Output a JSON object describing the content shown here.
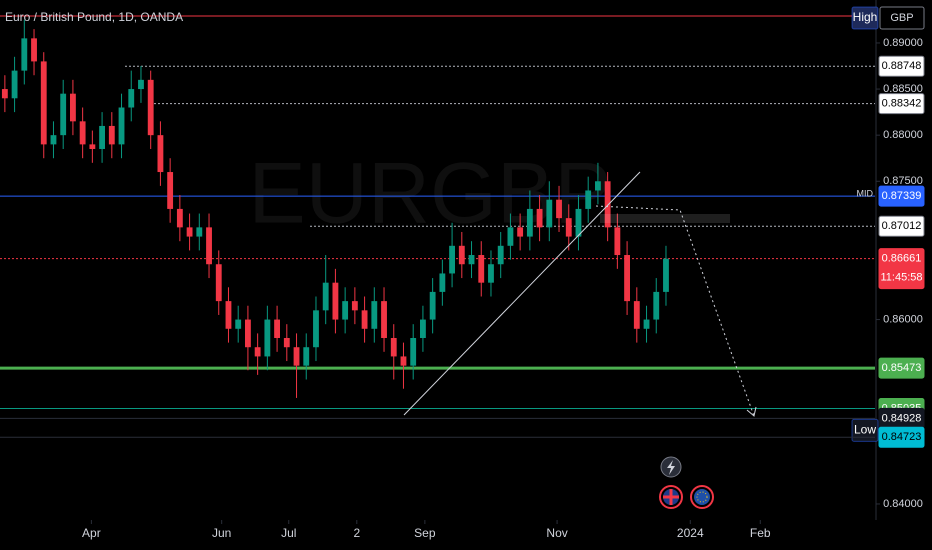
{
  "chart_data": {
    "type": "candlestick",
    "title": "Euro / British Pound, 1D, OANDA",
    "watermark": "EURGBP",
    "currency": "GBP",
    "up_color": "#089981",
    "down_color": "#f23645",
    "ylim": [
      0.83826,
      0.89466
    ],
    "yticks": [
      {
        "value": 0.89,
        "label": "0.89000"
      },
      {
        "value": 0.885,
        "label": "0.88500"
      },
      {
        "value": 0.88,
        "label": "0.88000"
      },
      {
        "value": 0.875,
        "label": "0.87500"
      },
      {
        "value": 0.86,
        "label": "0.86000"
      },
      {
        "value": 0.84,
        "label": "0.84000"
      }
    ],
    "xlim": [
      -0.5,
      89.5
    ],
    "xticks": [
      {
        "value": 8.9,
        "label": "Apr"
      },
      {
        "value": 22.3,
        "label": "Jun"
      },
      {
        "value": 29.2,
        "label": "Jul"
      },
      {
        "value": 36.2,
        "label": "2"
      },
      {
        "value": 43.2,
        "label": "Sep"
      },
      {
        "value": 56.8,
        "label": "Nov"
      },
      {
        "value": 70.5,
        "label": "2024"
      },
      {
        "value": 77.7,
        "label": "Feb"
      }
    ],
    "open": [
      0.885,
      0.884,
      0.887,
      0.8905,
      0.888,
      0.879,
      0.88,
      0.8845,
      0.8815,
      0.879,
      0.8785,
      0.881,
      0.879,
      0.883,
      0.885,
      0.886,
      0.88,
      0.876,
      0.872,
      0.87,
      0.869,
      0.87,
      0.866,
      0.862,
      0.859,
      0.86,
      0.857,
      0.856,
      0.86,
      0.858,
      0.857,
      0.855,
      0.857,
      0.861,
      0.864,
      0.86,
      0.862,
      0.861,
      0.859,
      0.862,
      0.858,
      0.856,
      0.855,
      0.858,
      0.86,
      0.863,
      0.865,
      0.868,
      0.866,
      0.867,
      0.864,
      0.866,
      0.868,
      0.87,
      0.869,
      0.872,
      0.87,
      0.873,
      0.871,
      0.869,
      0.872,
      0.874,
      0.875,
      0.87,
      0.867,
      0.862,
      0.859,
      0.86,
      0.863
    ],
    "high": [
      0.8865,
      0.8885,
      0.8925,
      0.8915,
      0.889,
      0.8815,
      0.886,
      0.886,
      0.883,
      0.8805,
      0.8825,
      0.8825,
      0.8845,
      0.887,
      0.8875,
      0.887,
      0.8815,
      0.8775,
      0.8735,
      0.8715,
      0.8715,
      0.8715,
      0.8675,
      0.8635,
      0.8615,
      0.8615,
      0.8585,
      0.8615,
      0.8615,
      0.8595,
      0.8585,
      0.8585,
      0.8625,
      0.867,
      0.8655,
      0.8635,
      0.8635,
      0.8625,
      0.8635,
      0.8635,
      0.8595,
      0.8575,
      0.8595,
      0.8615,
      0.8645,
      0.8665,
      0.8705,
      0.8695,
      0.8685,
      0.8685,
      0.8675,
      0.8695,
      0.8715,
      0.8715,
      0.874,
      0.8735,
      0.875,
      0.8745,
      0.8725,
      0.8735,
      0.8755,
      0.877,
      0.876,
      0.8715,
      0.8685,
      0.8635,
      0.8615,
      0.8645,
      0.868
    ],
    "low": [
      0.8825,
      0.8825,
      0.8855,
      0.8865,
      0.8775,
      0.8775,
      0.8785,
      0.88,
      0.8775,
      0.877,
      0.877,
      0.8775,
      0.8775,
      0.8815,
      0.8835,
      0.8785,
      0.8745,
      0.8705,
      0.8685,
      0.8675,
      0.8675,
      0.8645,
      0.8605,
      0.8575,
      0.8575,
      0.8545,
      0.854,
      0.8545,
      0.8565,
      0.8555,
      0.8515,
      0.8535,
      0.8555,
      0.8595,
      0.8585,
      0.8585,
      0.8595,
      0.8575,
      0.8575,
      0.8565,
      0.8535,
      0.8525,
      0.8535,
      0.8565,
      0.8585,
      0.8615,
      0.8635,
      0.8645,
      0.8645,
      0.8625,
      0.8625,
      0.8645,
      0.8665,
      0.8675,
      0.8675,
      0.8685,
      0.8685,
      0.8695,
      0.8675,
      0.8675,
      0.8705,
      0.8725,
      0.8685,
      0.8655,
      0.8605,
      0.8575,
      0.8575,
      0.8585,
      0.8615
    ],
    "close": [
      0.884,
      0.887,
      0.8905,
      0.888,
      0.879,
      0.88,
      0.8845,
      0.8815,
      0.879,
      0.8785,
      0.881,
      0.879,
      0.883,
      0.885,
      0.886,
      0.88,
      0.876,
      0.872,
      0.87,
      0.869,
      0.87,
      0.866,
      0.862,
      0.859,
      0.86,
      0.857,
      0.856,
      0.86,
      0.858,
      0.857,
      0.855,
      0.857,
      0.861,
      0.864,
      0.86,
      0.862,
      0.861,
      0.859,
      0.862,
      0.858,
      0.856,
      0.855,
      0.858,
      0.86,
      0.863,
      0.865,
      0.868,
      0.866,
      0.867,
      0.864,
      0.866,
      0.868,
      0.87,
      0.869,
      0.872,
      0.87,
      0.873,
      0.871,
      0.869,
      0.872,
      0.874,
      0.875,
      0.87,
      0.867,
      0.862,
      0.859,
      0.86,
      0.863,
      0.8666
    ],
    "levels": [
      {
        "name": "High",
        "value": 0.89292,
        "line_color": "#f23645",
        "label_bg": "#1e2a5a",
        "text_color": "#ffffff",
        "style": "solid"
      },
      {
        "value": 0.88748,
        "line_color": "#b2b5be",
        "label_bg": "#ffffff",
        "text_color": "#000000",
        "style": "dotted"
      },
      {
        "value": 0.88342,
        "line_color": "#b2b5be",
        "label_bg": "#ffffff",
        "text_color": "#000000",
        "style": "dotted"
      },
      {
        "name": "MID",
        "value": 0.87339,
        "line_color": "#2962ff",
        "label_bg": "#2962ff",
        "text_color": "#ffffff",
        "style": "solid"
      },
      {
        "value": 0.87012,
        "line_color": "#b2b5be",
        "label_bg": "#ffffff",
        "text_color": "#000000",
        "style": "dotted"
      },
      {
        "value": 0.86661,
        "countdown": "11:45:58",
        "line_color": "#f23645",
        "label_bg": "#f23645",
        "text_color": "#ffffff",
        "style": "dotted"
      },
      {
        "value": 0.85473,
        "line_color": "#4caf50",
        "label_bg": "#4caf50",
        "text_color": "#ffffff",
        "style": "thick"
      },
      {
        "value": 0.85035,
        "line_color": "#089981",
        "label_bg": "#4caf50",
        "text_color": "#ffffff",
        "style": "solid"
      },
      {
        "name": "Low",
        "value": 0.84928,
        "line_color": "#2a2e39",
        "label_bg": "#131722",
        "text_color": "#ffffff",
        "style": "solid"
      },
      {
        "value": 0.84723,
        "line_color": "#2a2e39",
        "label_bg": "#00bcd4",
        "text_color": "#000000",
        "style": "solid"
      }
    ]
  }
}
